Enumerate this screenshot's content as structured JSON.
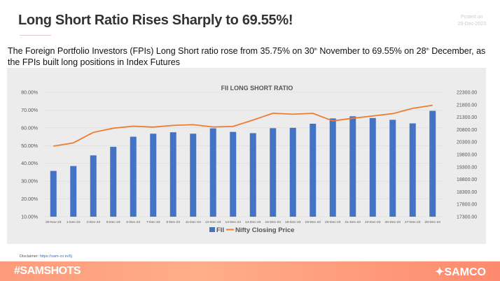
{
  "header": {
    "title": "Long Short Ratio Rises Sharply to 69.55%!",
    "posted_label": "Posted on",
    "posted_date": "28-Dec-2023"
  },
  "description": {
    "part1": "The Foreign Portfolio Investors (FPIs) Long Short ratio rose from 35.75% on 30",
    "sup1": "th",
    "part2": " November to 69.55% on 28",
    "sup2": "th",
    "part3": " December, as the FPIs built long positions in Index Futures"
  },
  "disclaimer": {
    "label": "Disclaimer: ",
    "link": "https://sam-co.in/6j"
  },
  "footer": {
    "hashtag": "#SAMSHOTS",
    "logo": "SAMCO"
  },
  "colors": {
    "bar": "#4472c4",
    "line": "#ed7d31",
    "footer": "#fd9a7c"
  },
  "chart_data": {
    "type": "bar+line",
    "title": "FII LONG SHORT RATIO",
    "categories": [
      "30-Nov-23",
      "1-Dec-23",
      "4-Dec-23",
      "5-Dec-23",
      "6-Dec-23",
      "7-Dec-23",
      "8-Dec-23",
      "11-Dec-23",
      "12-Dec-23",
      "13-Dec-23",
      "14-Dec-23",
      "15-Dec-23",
      "18-Dec-23",
      "19-Dec-23",
      "20-Dec-23",
      "21-Dec-23",
      "22-Dec-23",
      "26-Dec-23",
      "27-Dec-23",
      "28-Dec-23"
    ],
    "series": [
      {
        "name": "FII",
        "type": "bar",
        "axis": "left",
        "values": [
          35.75,
          38.5,
          44.5,
          49.3,
          55.0,
          56.7,
          57.5,
          56.7,
          59.7,
          57.7,
          57.0,
          59.8,
          60.0,
          62.3,
          65.3,
          66.5,
          65.5,
          64.5,
          62.5,
          69.55
        ]
      },
      {
        "name": "Nifty Closing Price",
        "type": "line",
        "axis": "right",
        "values": [
          20133,
          20268,
          20687,
          20855,
          20937,
          20901,
          20969,
          20997,
          20906,
          20926,
          21183,
          21457,
          21419,
          21453,
          21150,
          21255,
          21349,
          21441,
          21655,
          21778
        ]
      }
    ],
    "left_axis": {
      "ylim": [
        10,
        80
      ],
      "ticks": [
        "10.00%",
        "20.00%",
        "30.00%",
        "40.00%",
        "50.00%",
        "60.00%",
        "70.00%",
        "80.00%"
      ]
    },
    "right_axis": {
      "ylim": [
        17300,
        22300
      ],
      "ticks": [
        "17300.00",
        "17800.00",
        "18300.00",
        "18800.00",
        "19300.00",
        "19800.00",
        "20300.00",
        "20800.00",
        "21300.00",
        "21800.00",
        "22300.00"
      ]
    },
    "legend": "bottom",
    "grid": true
  }
}
